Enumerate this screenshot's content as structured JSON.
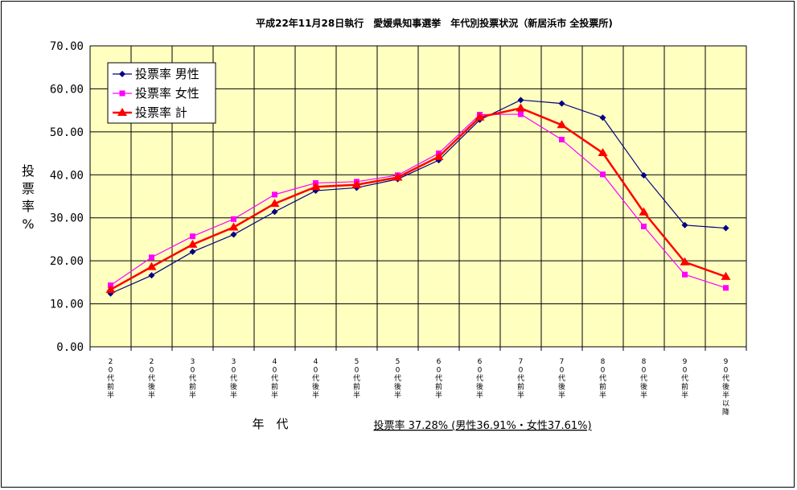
{
  "chart_data": {
    "type": "line",
    "title": "平成22年11月28日執行　愛媛県知事選挙　年代別投票状況（新居浜市 全投票所)",
    "ylabel": "投票率%",
    "xlabel": "年　代",
    "note": "投票率 37.28% (男性36.91%・女性37.61%)",
    "ylim": [
      0,
      70
    ],
    "yticks": [
      "0.00",
      "10.00",
      "20.00",
      "30.00",
      "40.00",
      "50.00",
      "60.00",
      "70.00"
    ],
    "categories": [
      "20代前半",
      "20代後半",
      "30代前半",
      "30代後半",
      "40代前半",
      "40代後半",
      "50代前半",
      "50代後半",
      "60代前半",
      "60代後半",
      "70代前半",
      "70代後半",
      "80代前半",
      "80代後半",
      "90代前半",
      "90代後半以降"
    ],
    "series": [
      {
        "name": "投票率 男性",
        "color": "#000080",
        "marker": "diamond",
        "values": [
          12.4,
          16.6,
          22.1,
          26.1,
          31.4,
          36.3,
          37.0,
          39.0,
          43.4,
          52.8,
          57.4,
          56.6,
          53.3,
          39.9,
          28.3,
          27.6
        ]
      },
      {
        "name": "投票率 女性",
        "color": "#ff00ff",
        "marker": "square",
        "values": [
          14.3,
          20.8,
          25.7,
          29.7,
          35.4,
          38.1,
          38.4,
          39.9,
          45.0,
          54.0,
          54.1,
          48.2,
          40.1,
          28.0,
          16.8,
          13.7
        ]
      },
      {
        "name": "投票率 計",
        "color": "#ff0000",
        "marker": "triangle",
        "values": [
          13.3,
          18.6,
          23.8,
          27.8,
          33.3,
          37.2,
          37.7,
          39.4,
          44.2,
          53.4,
          55.5,
          51.6,
          45.1,
          31.3,
          19.7,
          16.3
        ]
      }
    ],
    "grid": true,
    "legend_position": "top-left",
    "plot_background": "#ffffc0"
  }
}
